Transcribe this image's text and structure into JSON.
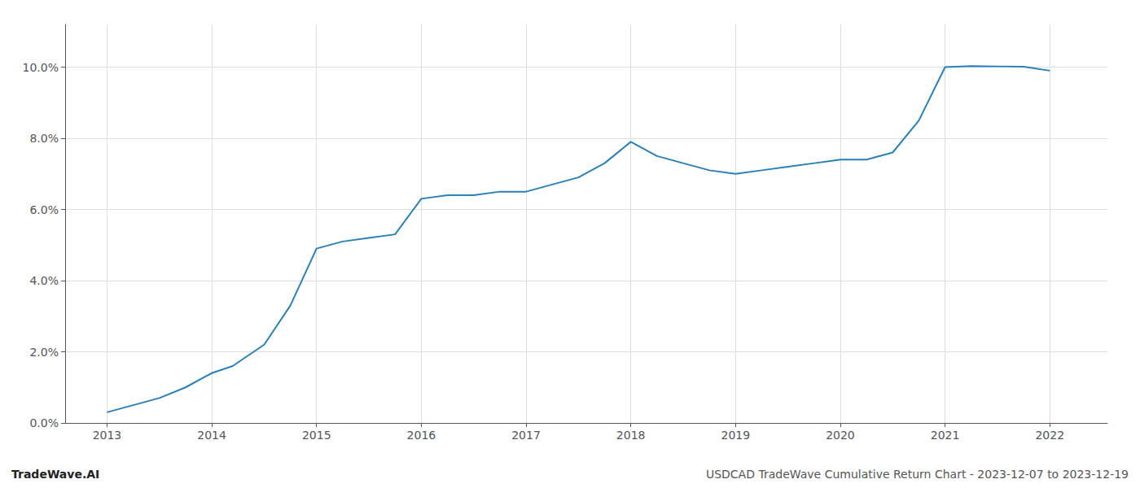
{
  "chart_data": {
    "type": "line",
    "x": [
      2013.0,
      2013.25,
      2013.5,
      2013.75,
      2014.0,
      2014.2,
      2014.5,
      2014.75,
      2015.0,
      2015.25,
      2015.5,
      2015.75,
      2016.0,
      2016.25,
      2016.5,
      2016.75,
      2017.0,
      2017.25,
      2017.5,
      2017.75,
      2018.0,
      2018.25,
      2018.5,
      2018.75,
      2019.0,
      2019.25,
      2019.5,
      2019.75,
      2020.0,
      2020.25,
      2020.5,
      2020.75,
      2021.0,
      2021.25,
      2021.5,
      2021.75,
      2022.0
    ],
    "values": [
      0.003,
      0.005,
      0.007,
      0.01,
      0.014,
      0.016,
      0.022,
      0.033,
      0.049,
      0.051,
      0.052,
      0.053,
      0.063,
      0.064,
      0.064,
      0.065,
      0.065,
      0.067,
      0.069,
      0.073,
      0.079,
      0.075,
      0.073,
      0.071,
      0.07,
      0.071,
      0.072,
      0.073,
      0.074,
      0.074,
      0.076,
      0.085,
      0.1,
      0.1003,
      0.1002,
      0.1001,
      0.099
    ],
    "color": "#2980b9",
    "xlim": [
      2012.6,
      2022.55
    ],
    "ylim": [
      0.0,
      0.112
    ],
    "xticks": [
      2013,
      2014,
      2015,
      2016,
      2017,
      2018,
      2019,
      2020,
      2021,
      2022
    ],
    "yticks": [
      {
        "value": 0.0,
        "label": "0.0%"
      },
      {
        "value": 0.02,
        "label": "2.0%"
      },
      {
        "value": 0.04,
        "label": "4.0%"
      },
      {
        "value": 0.06,
        "label": "6.0%"
      },
      {
        "value": 0.08,
        "label": "8.0%"
      },
      {
        "value": 0.1,
        "label": "10.0%"
      }
    ],
    "grid": true,
    "annotations": [
      "TradeWave.AI",
      "USDCAD TradeWave Cumulative Return Chart - 2023-12-07 to 2023-12-19"
    ]
  }
}
